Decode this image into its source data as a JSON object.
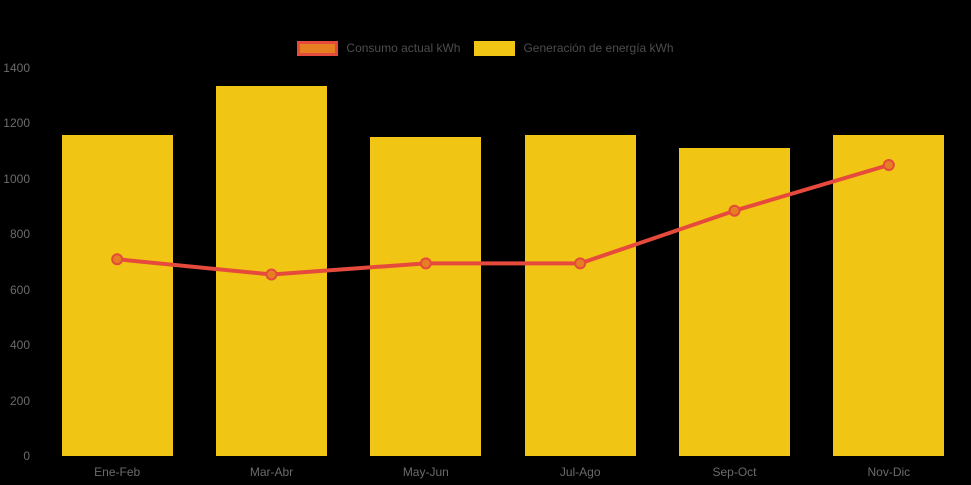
{
  "background_color": "#000000",
  "legend": {
    "position": "top",
    "items": [
      {
        "label": "Consumo actual kWh",
        "swatch_fill": "#e67e22",
        "swatch_border": "#e64a3c"
      },
      {
        "label": "Generación de energía kWh",
        "swatch_fill": "#f0c514",
        "swatch_border": "#f0c514"
      }
    ]
  },
  "chart_data": {
    "type": "bar",
    "title": "",
    "xlabel": "",
    "ylabel": "",
    "categories": [
      "Ene-Feb",
      "Mar-Abr",
      "May-Jun",
      "Jul-Ago",
      "Sep-Oct",
      "Nov-Dic"
    ],
    "series": [
      {
        "name": "Consumo actual kWh",
        "type": "line",
        "values": [
          710,
          655,
          695,
          695,
          885,
          1050
        ],
        "line_color": "#e64a3c",
        "marker_fill": "#e67e22",
        "marker_border": "#e64a3c"
      },
      {
        "name": "Generación de energía kWh",
        "type": "bar",
        "values": [
          1160,
          1335,
          1150,
          1160,
          1110,
          1160
        ],
        "bar_color": "#f0c514"
      }
    ],
    "ylim": [
      0,
      1400
    ],
    "yticks": [
      0,
      200,
      400,
      600,
      800,
      1000,
      1200,
      1400
    ],
    "grid": false,
    "legend_position": "top",
    "axis_text_color": "#6b6b6b"
  }
}
